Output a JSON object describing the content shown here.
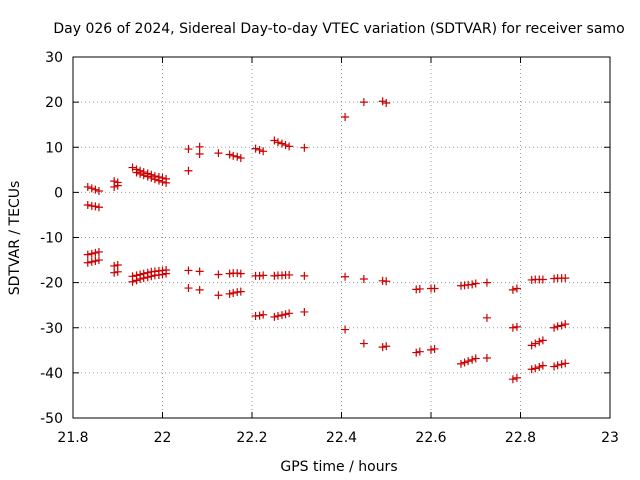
{
  "chart_data": {
    "type": "scatter",
    "title": "Day 026 of 2024, Sidereal Day-to-day VTEC variation (SDTVAR) for receiver samo",
    "xlabel": "GPS time / hours",
    "ylabel": "SDTVAR / TECUs",
    "xlim": [
      21.8,
      23
    ],
    "ylim": [
      -50,
      30
    ],
    "xticks": [
      21.8,
      22,
      22.2,
      22.4,
      22.6,
      22.8,
      23
    ],
    "xtick_labels": [
      "21.8",
      "22",
      "22.2",
      "22.4",
      "22.6",
      "22.8",
      "23"
    ],
    "yticks": [
      -50,
      -40,
      -30,
      -20,
      -10,
      0,
      10,
      20,
      30
    ],
    "ytick_labels": [
      "-50",
      "-40",
      "-30",
      "-20",
      "-10",
      "0",
      "10",
      "20",
      "30"
    ],
    "grid": true,
    "marker": "+",
    "color": "#cc0000",
    "series": [
      {
        "name": "trace-1",
        "x": [
          21.833,
          21.842,
          21.85,
          21.858
        ],
        "y": [
          1.2,
          0.9,
          0.6,
          0.3
        ]
      },
      {
        "name": "trace-2",
        "x": [
          21.833,
          21.842,
          21.85,
          21.858
        ],
        "y": [
          -2.8,
          -3.0,
          -3.1,
          -3.3
        ]
      },
      {
        "name": "trace-3",
        "x": [
          21.833,
          21.842,
          21.85,
          21.858
        ],
        "y": [
          -13.8,
          -13.6,
          -13.4,
          -13.2
        ]
      },
      {
        "name": "trace-4",
        "x": [
          21.833,
          21.842,
          21.85,
          21.858
        ],
        "y": [
          -15.6,
          -15.4,
          -15.2,
          -15.0
        ]
      },
      {
        "name": "trace-5",
        "x": [
          21.892,
          21.9
        ],
        "y": [
          2.5,
          2.2
        ]
      },
      {
        "name": "trace-6",
        "x": [
          21.892,
          21.9
        ],
        "y": [
          1.2,
          1.5
        ]
      },
      {
        "name": "trace-7",
        "x": [
          21.892,
          21.9
        ],
        "y": [
          -16.3,
          -16.1
        ]
      },
      {
        "name": "trace-8",
        "x": [
          21.892,
          21.9
        ],
        "y": [
          -17.8,
          -17.6
        ]
      },
      {
        "name": "trace-9",
        "x": [
          21.933,
          21.942,
          21.95,
          21.958,
          21.967,
          21.975,
          21.983,
          21.992,
          22.0,
          22.008
        ],
        "y": [
          5.5,
          5.1,
          4.8,
          4.5,
          4.2,
          3.9,
          3.6,
          3.4,
          3.2,
          3.0
        ]
      },
      {
        "name": "trace-10",
        "x": [
          21.942,
          21.95,
          21.958,
          21.967,
          21.975,
          21.983,
          21.992,
          22.0,
          22.008
        ],
        "y": [
          4.4,
          4.1,
          3.8,
          3.5,
          3.2,
          2.9,
          2.6,
          2.3,
          2.1
        ]
      },
      {
        "name": "trace-11",
        "x": [
          21.933,
          21.942,
          21.95,
          21.958,
          21.967,
          21.975,
          21.983,
          21.992,
          22.0,
          22.008
        ],
        "y": [
          -18.6,
          -18.4,
          -18.2,
          -18.0,
          -17.8,
          -17.6,
          -17.5,
          -17.4,
          -17.3,
          -17.2
        ]
      },
      {
        "name": "trace-12",
        "x": [
          21.933,
          21.942,
          21.95,
          21.958,
          21.967,
          21.975,
          21.983,
          21.992,
          22.0,
          22.008
        ],
        "y": [
          -19.8,
          -19.5,
          -19.2,
          -19.0,
          -18.8,
          -18.6,
          -18.4,
          -18.3,
          -18.2,
          -18.0
        ]
      },
      {
        "name": "trace-13",
        "x": [
          22.058,
          22.083
        ],
        "y": [
          4.8,
          8.5
        ]
      },
      {
        "name": "trace-14",
        "x": [
          22.058,
          22.083
        ],
        "y": [
          9.6,
          10.1
        ]
      },
      {
        "name": "trace-15",
        "x": [
          22.058,
          22.083
        ],
        "y": [
          -17.3,
          -17.5
        ]
      },
      {
        "name": "trace-16",
        "x": [
          22.058,
          22.083
        ],
        "y": [
          -21.2,
          -21.6
        ]
      },
      {
        "name": "trace-17",
        "x": [
          22.125,
          22.15,
          22.158,
          22.167,
          22.175
        ],
        "y": [
          8.7,
          8.4,
          8.1,
          7.9,
          7.6
        ]
      },
      {
        "name": "trace-18",
        "x": [
          22.125,
          22.15,
          22.158,
          22.167,
          22.175
        ],
        "y": [
          -18.2,
          -18.0,
          -17.9,
          -17.9,
          -18.0
        ]
      },
      {
        "name": "trace-19",
        "x": [
          22.125,
          22.15,
          22.158,
          22.167,
          22.175
        ],
        "y": [
          -22.8,
          -22.5,
          -22.3,
          -22.1,
          -22.0
        ]
      },
      {
        "name": "trace-20",
        "x": [
          22.208,
          22.217,
          22.225
        ],
        "y": [
          9.7,
          9.4,
          9.1
        ]
      },
      {
        "name": "trace-21",
        "x": [
          22.208,
          22.217,
          22.225
        ],
        "y": [
          -18.5,
          -18.5,
          -18.4
        ]
      },
      {
        "name": "trace-22",
        "x": [
          22.208,
          22.217,
          22.225
        ],
        "y": [
          -27.4,
          -27.3,
          -27.1
        ]
      },
      {
        "name": "trace-23",
        "x": [
          22.25,
          22.258,
          22.267,
          22.275,
          22.283
        ],
        "y": [
          11.5,
          11.1,
          10.8,
          10.5,
          10.2
        ]
      },
      {
        "name": "trace-24",
        "x": [
          22.25,
          22.258,
          22.267,
          22.275,
          22.283
        ],
        "y": [
          -18.5,
          -18.4,
          -18.4,
          -18.3,
          -18.3
        ]
      },
      {
        "name": "trace-25",
        "x": [
          22.25,
          22.258,
          22.267,
          22.275,
          22.283
        ],
        "y": [
          -27.6,
          -27.4,
          -27.2,
          -27.0,
          -26.8
        ]
      },
      {
        "name": "trace-26",
        "x": [
          22.317
        ],
        "y": [
          9.9
        ]
      },
      {
        "name": "trace-27",
        "x": [
          22.317
        ],
        "y": [
          -18.5
        ]
      },
      {
        "name": "trace-28",
        "x": [
          22.317
        ],
        "y": [
          -26.5
        ]
      },
      {
        "name": "trace-29",
        "x": [
          22.408,
          22.45,
          22.492,
          22.5
        ],
        "y": [
          16.7,
          20.0,
          20.2,
          19.8
        ]
      },
      {
        "name": "trace-30",
        "x": [
          22.408,
          22.45,
          22.492,
          22.5
        ],
        "y": [
          -18.7,
          -19.2,
          -19.6,
          -19.7
        ]
      },
      {
        "name": "trace-31",
        "x": [
          22.408,
          22.45,
          22.492,
          22.5
        ],
        "y": [
          -30.4,
          -33.5,
          -34.3,
          -34.1
        ]
      },
      {
        "name": "trace-32",
        "x": [
          22.567,
          22.575,
          22.6,
          22.608
        ],
        "y": [
          -21.5,
          -21.4,
          -21.3,
          -21.3
        ]
      },
      {
        "name": "trace-33",
        "x": [
          22.567,
          22.575,
          22.6,
          22.608
        ],
        "y": [
          -35.5,
          -35.3,
          -34.9,
          -34.7
        ]
      },
      {
        "name": "trace-34",
        "x": [
          22.667,
          22.675,
          22.683,
          22.692,
          22.7,
          22.725
        ],
        "y": [
          -20.7,
          -20.6,
          -20.5,
          -20.4,
          -20.2,
          -20.0
        ]
      },
      {
        "name": "trace-35",
        "x": [
          22.667,
          22.675,
          22.683,
          22.692,
          22.7,
          22.725
        ],
        "y": [
          -38.0,
          -37.7,
          -37.4,
          -37.1,
          -36.8,
          -36.7
        ]
      },
      {
        "name": "trace-36",
        "x": [
          22.725
        ],
        "y": [
          -27.8
        ]
      },
      {
        "name": "trace-37",
        "x": [
          22.783,
          22.792
        ],
        "y": [
          -21.6,
          -21.3
        ]
      },
      {
        "name": "trace-38",
        "x": [
          22.783,
          22.792
        ],
        "y": [
          -30.0,
          -29.8
        ]
      },
      {
        "name": "trace-39",
        "x": [
          22.783,
          22.792
        ],
        "y": [
          -41.4,
          -41.1
        ]
      },
      {
        "name": "trace-40",
        "x": [
          22.825,
          22.833,
          22.842,
          22.85,
          22.875,
          22.883,
          22.892,
          22.9
        ],
        "y": [
          -19.4,
          -19.3,
          -19.3,
          -19.3,
          -19.1,
          -19.0,
          -19.0,
          -19.0
        ]
      },
      {
        "name": "trace-41",
        "x": [
          22.825,
          22.833,
          22.842,
          22.85,
          22.875,
          22.883,
          22.892,
          22.9
        ],
        "y": [
          -33.9,
          -33.5,
          -33.1,
          -32.8,
          -30.0,
          -29.7,
          -29.5,
          -29.2
        ]
      },
      {
        "name": "trace-42",
        "x": [
          22.825,
          22.833,
          22.842,
          22.85,
          22.875,
          22.883,
          22.892,
          22.9
        ],
        "y": [
          -39.2,
          -39.0,
          -38.7,
          -38.4,
          -38.6,
          -38.3,
          -38.1,
          -37.9
        ]
      }
    ]
  }
}
